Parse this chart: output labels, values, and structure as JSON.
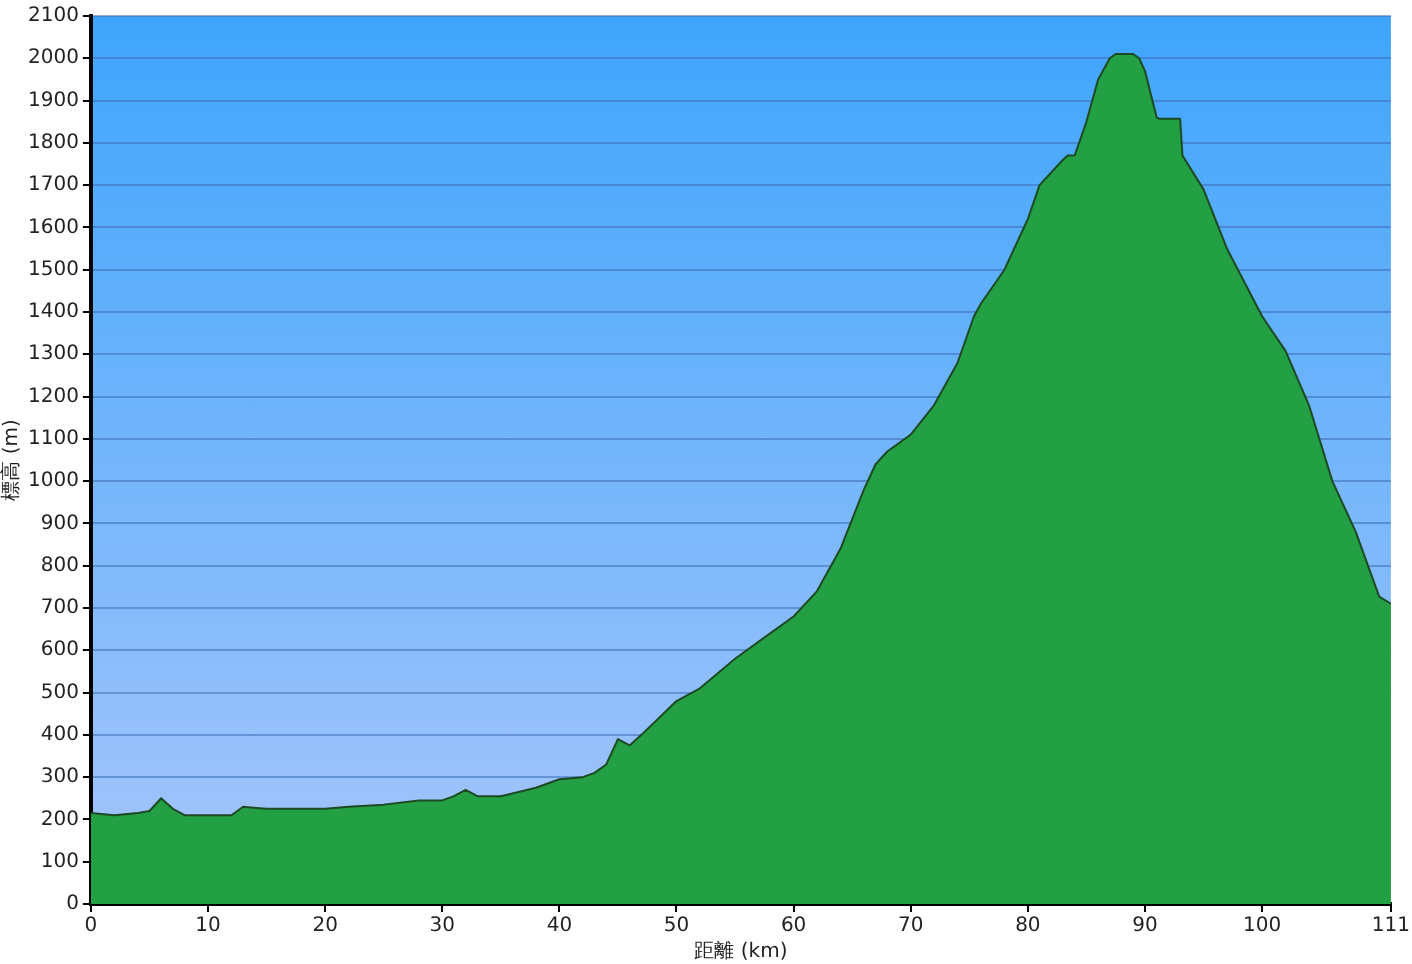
{
  "chart_data": {
    "type": "area",
    "xlabel": "距離 (km)",
    "ylabel": "標高 (m)",
    "x": [
      0,
      2,
      4,
      5,
      6,
      7,
      8,
      10,
      12,
      13,
      15,
      18,
      20,
      22,
      25,
      28,
      30,
      31,
      32,
      33,
      35,
      38,
      40,
      42,
      43,
      44,
      45,
      46,
      47,
      50,
      52,
      55,
      58,
      60,
      62,
      64,
      66,
      67,
      68,
      70,
      72,
      74,
      75.4,
      76,
      78,
      80,
      81,
      83,
      83.4,
      84,
      85,
      86,
      87,
      87.5,
      88,
      89,
      89.5,
      90,
      91,
      91.2,
      93,
      93.2,
      95,
      97,
      100,
      102,
      104,
      106,
      108,
      110,
      111
    ],
    "series": [
      {
        "color": "#22a043",
        "values": [
          215,
          210,
          215,
          220,
          250,
          225,
          210,
          210,
          210,
          230,
          225,
          225,
          225,
          230,
          235,
          245,
          245,
          255,
          270,
          255,
          255,
          275,
          295,
          300,
          310,
          330,
          390,
          375,
          400,
          480,
          510,
          580,
          640,
          680,
          740,
          840,
          980,
          1040,
          1070,
          1110,
          1180,
          1280,
          1390,
          1420,
          1500,
          1620,
          1700,
          1760,
          1770,
          1770,
          1850,
          1950,
          2000,
          2010,
          2010,
          2010,
          2000,
          1970,
          1860,
          1857,
          1857,
          1770,
          1690,
          1550,
          1390,
          1308,
          1180,
          1000,
          880,
          727,
          710
        ]
      }
    ],
    "xlim": [
      0,
      111
    ],
    "xticks": [
      0,
      10,
      20,
      30,
      40,
      50,
      60,
      70,
      80,
      90,
      100,
      111
    ],
    "ylim": [
      0,
      2100
    ],
    "yticks": [
      0,
      100,
      200,
      300,
      400,
      500,
      600,
      700,
      800,
      900,
      1000,
      1100,
      1200,
      1300,
      1400,
      1500,
      1600,
      1700,
      1800,
      1900,
      2000,
      2100
    ],
    "grid": "y",
    "legend": false,
    "marker": "none",
    "line_style": "solid"
  }
}
